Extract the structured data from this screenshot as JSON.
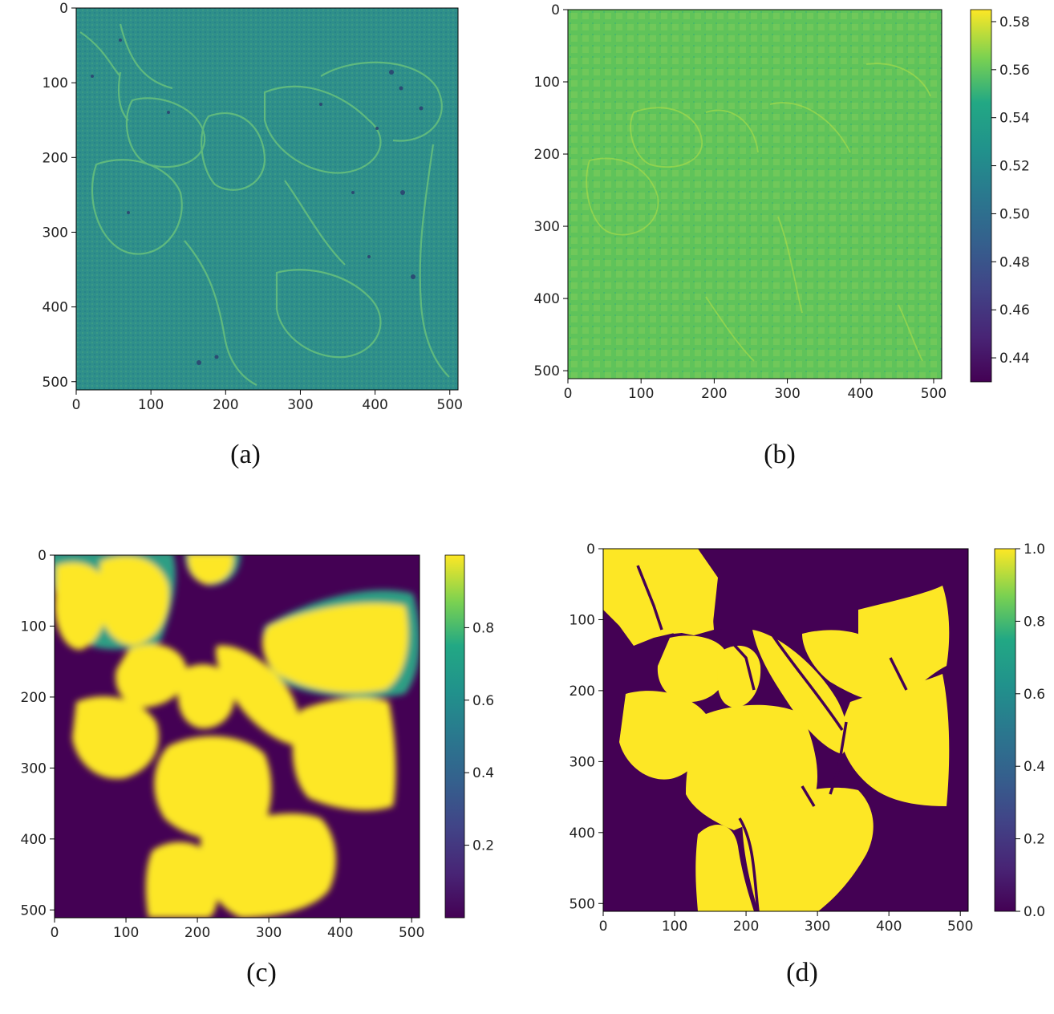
{
  "chart_data": [
    {
      "id": "a",
      "type": "heatmap",
      "caption": "(a)",
      "title": "",
      "xlabel": "",
      "ylabel": "",
      "xlim": [
        0,
        511
      ],
      "ylim": [
        511,
        0
      ],
      "x_ticks": [
        0,
        100,
        200,
        300,
        400,
        500
      ],
      "y_ticks": [
        0,
        100,
        200,
        300,
        400,
        500
      ],
      "colorbar": null,
      "description_colors": {
        "base": "#2b8c8a",
        "highlight": "#8fd36a",
        "dark": "#2a3a6a"
      }
    },
    {
      "id": "b",
      "type": "heatmap",
      "caption": "(b)",
      "title": "",
      "xlabel": "",
      "ylabel": "",
      "xlim": [
        0,
        511
      ],
      "ylim": [
        511,
        0
      ],
      "x_ticks": [
        0,
        100,
        200,
        300,
        400,
        500
      ],
      "y_ticks": [
        0,
        100,
        200,
        300,
        400,
        500
      ],
      "colorbar": {
        "min": 0.43,
        "max": 0.585,
        "ticks": [
          "0.44",
          "0.46",
          "0.48",
          "0.50",
          "0.52",
          "0.54",
          "0.56",
          "0.58"
        ]
      },
      "description_colors": {
        "base": "#5ec45a",
        "highlight": "#a6d94a"
      }
    },
    {
      "id": "c",
      "type": "heatmap",
      "caption": "(c)",
      "title": "",
      "xlabel": "",
      "ylabel": "",
      "xlim": [
        0,
        511
      ],
      "ylim": [
        511,
        0
      ],
      "x_ticks": [
        0,
        100,
        200,
        300,
        400,
        500
      ],
      "y_ticks": [
        0,
        100,
        200,
        300,
        400,
        500
      ],
      "colorbar": {
        "min": 0.0,
        "max": 1.0,
        "ticks": [
          "0.2",
          "0.4",
          "0.6",
          "0.8"
        ]
      },
      "description_colors": {
        "background": "#440154",
        "cell": "#fde725",
        "edge": "#3bb57a"
      }
    },
    {
      "id": "d",
      "type": "heatmap",
      "caption": "(d)",
      "title": "",
      "xlabel": "",
      "ylabel": "",
      "xlim": [
        0,
        511
      ],
      "ylim": [
        511,
        0
      ],
      "x_ticks": [
        0,
        100,
        200,
        300,
        400,
        500
      ],
      "y_ticks": [
        0,
        100,
        200,
        300,
        400,
        500
      ],
      "colorbar": {
        "min": 0.0,
        "max": 1.0,
        "ticks": [
          "0.0",
          "0.2",
          "0.4",
          "0.6",
          "0.8",
          "1.0"
        ]
      },
      "description_colors": {
        "background": "#440154",
        "cell": "#fde725"
      }
    }
  ]
}
